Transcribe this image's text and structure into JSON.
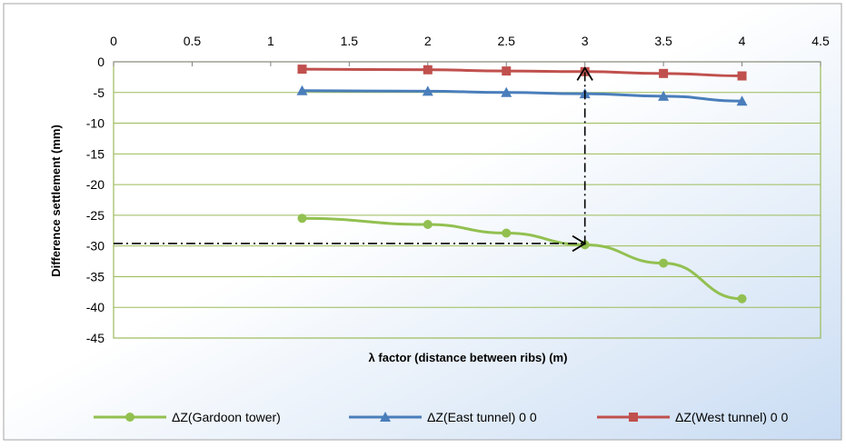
{
  "colors": {
    "gardoon": "#92c050",
    "east": "#4a7ebb",
    "west": "#c0504d",
    "plot_border": "#9bbb59",
    "annotation": "#000000",
    "background_top": "#ffffff",
    "background_bottom": "#c9dcf3"
  },
  "chart_data": {
    "type": "line",
    "title": "",
    "xlabel": "λ  factor (distance between ribs) (m)",
    "ylabel": "Difference settlement (mm)",
    "xlim": [
      0,
      4.5
    ],
    "ylim": [
      -45,
      0
    ],
    "x_ticks": [
      "0",
      "0.5",
      "1",
      "1.5",
      "2",
      "2.5",
      "3",
      "3.5",
      "4",
      "4.5"
    ],
    "y_ticks": [
      "0",
      "-5",
      "-10",
      "-15",
      "-20",
      "-25",
      "-30",
      "-35",
      "-40",
      "-45"
    ],
    "x_axis_position": "top",
    "grid": "horizontal",
    "legend_position": "bottom",
    "series": [
      {
        "name": "ΔZ(Gardoon tower)",
        "marker": "circle",
        "color_key": "gardoon",
        "x": [
          1.2,
          2,
          2.5,
          3,
          3.5,
          4
        ],
        "y": [
          -25.5,
          -26.5,
          -27.9,
          -29.8,
          -32.8,
          -38.6
        ]
      },
      {
        "name": "ΔZ(East tunnel) 0 0",
        "marker": "triangle",
        "color_key": "east",
        "x": [
          1.2,
          2,
          2.5,
          3,
          3.5,
          4
        ],
        "y": [
          -4.7,
          -4.8,
          -5.0,
          -5.2,
          -5.6,
          -6.4
        ]
      },
      {
        "name": "ΔZ(West tunnel) 0 0",
        "marker": "square",
        "color_key": "west",
        "x": [
          1.2,
          2,
          2.5,
          3,
          3.5,
          4
        ],
        "y": [
          -1.2,
          -1.3,
          -1.5,
          -1.6,
          -1.9,
          -2.3
        ]
      }
    ],
    "annotations": [
      {
        "type": "dash-dot-arrow",
        "from": [
          3,
          -29.8
        ],
        "to": [
          3,
          -1.0
        ]
      },
      {
        "type": "dash-dot-arrow",
        "from": [
          0,
          -29.6
        ],
        "to": [
          3,
          -29.6
        ]
      }
    ]
  }
}
